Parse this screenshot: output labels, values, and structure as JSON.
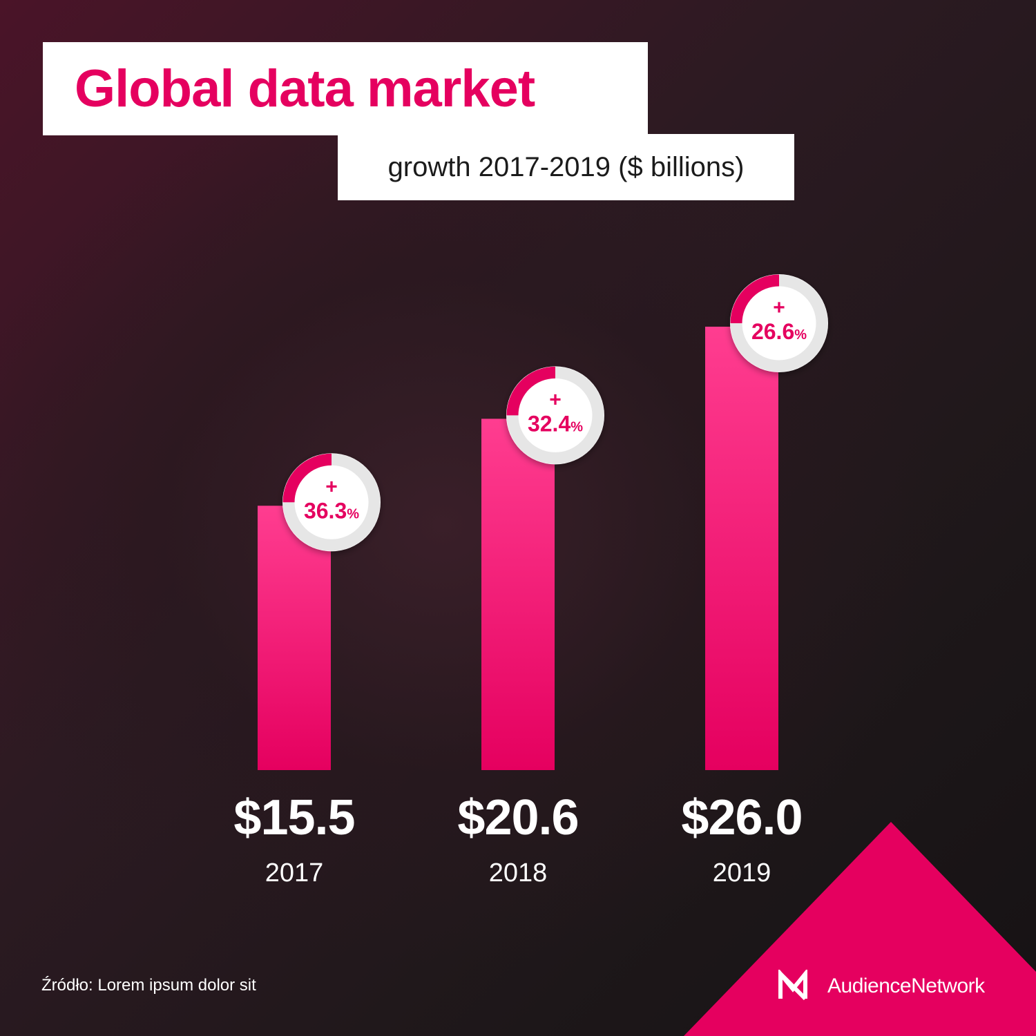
{
  "header": {
    "title": "Global data market",
    "subtitle": "growth 2017-2019 ($ billions)"
  },
  "chart_data": {
    "type": "bar",
    "title": "Global data market",
    "subtitle": "growth 2017-2019 ($ billions)",
    "categories": [
      "2017",
      "2018",
      "2019"
    ],
    "values": [
      15.5,
      20.6,
      26.0
    ],
    "value_labels": [
      "$15.5",
      "$20.6",
      "$26.0"
    ],
    "growth": [
      {
        "plus": "+",
        "value": "36.3",
        "unit": "%",
        "fraction": 0.25
      },
      {
        "plus": "+",
        "value": "32.4",
        "unit": "%",
        "fraction": 0.25
      },
      {
        "plus": "+",
        "value": "26.6",
        "unit": "%",
        "fraction": 0.25
      }
    ],
    "ylim": [
      0,
      26.0
    ],
    "grid": false,
    "legend": "none"
  },
  "footer": {
    "source": "Źródło: Lorem ipsum dolor sit",
    "brand": "AudienceNetwork"
  },
  "colors": {
    "accent": "#e5005f",
    "bar_top": "#ff3d90",
    "bar_bottom": "#e5005f",
    "white": "#ffffff",
    "ring": "#e6e6e6"
  }
}
